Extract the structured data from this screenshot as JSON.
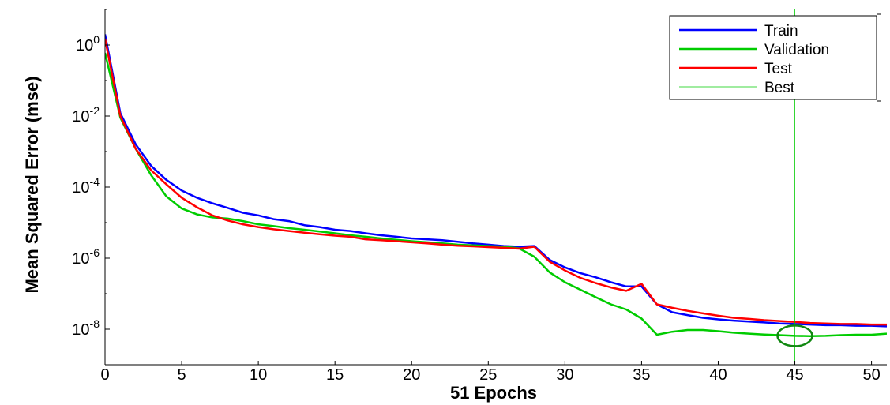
{
  "chart_data": {
    "type": "line",
    "xlabel": "51 Epochs",
    "ylabel": "Mean Squared Error  (mse)",
    "xlim": [
      0,
      51
    ],
    "ylim": [
      1e-09,
      10
    ],
    "yscale": "log",
    "x_ticks": [
      0,
      5,
      10,
      15,
      20,
      25,
      30,
      35,
      40,
      45,
      50
    ],
    "y_ticks": [
      {
        "value": 1,
        "base": "10",
        "exp": "0"
      },
      {
        "value": 0.01,
        "base": "10",
        "exp": "-2"
      },
      {
        "value": 0.0001,
        "base": "10",
        "exp": "-4"
      },
      {
        "value": 1e-06,
        "base": "10",
        "exp": "-6"
      },
      {
        "value": 1e-08,
        "base": "10",
        "exp": "-8"
      }
    ],
    "grid": false,
    "legend_position": "top-right",
    "series": [
      {
        "name": "Train",
        "color": "#0000ff",
        "x": [
          0,
          1,
          2,
          3,
          4,
          5,
          6,
          7,
          8,
          9,
          10,
          11,
          12,
          13,
          14,
          15,
          16,
          17,
          18,
          19,
          20,
          21,
          22,
          23,
          24,
          25,
          26,
          27,
          28,
          29,
          30,
          31,
          32,
          33,
          34,
          35,
          36,
          37,
          38,
          39,
          40,
          41,
          42,
          43,
          44,
          45,
          46,
          47,
          48,
          49,
          50,
          51
        ],
        "y": [
          2.0,
          0.012,
          0.0016,
          0.0004,
          0.00016,
          8e-05,
          5e-05,
          3.5e-05,
          2.6e-05,
          1.9e-05,
          1.6e-05,
          1.25e-05,
          1.1e-05,
          8.5e-06,
          7.5e-06,
          6.3e-06,
          5.8e-06,
          5e-06,
          4.4e-06,
          4e-06,
          3.6e-06,
          3.4e-06,
          3.2e-06,
          2.9e-06,
          2.6e-06,
          2.4e-06,
          2.2e-06,
          2.1e-06,
          2.2e-06,
          9e-07,
          5.5e-07,
          3.8e-07,
          2.9e-07,
          2.1e-07,
          1.6e-07,
          1.6e-07,
          5e-08,
          3e-08,
          2.5e-08,
          2.1e-08,
          1.9e-08,
          1.75e-08,
          1.65e-08,
          1.55e-08,
          1.45e-08,
          1.4e-08,
          1.35e-08,
          1.3e-08,
          1.3e-08,
          1.25e-08,
          1.25e-08,
          1.2e-08
        ]
      },
      {
        "name": "Validation",
        "color": "#00cc00",
        "x": [
          0,
          1,
          2,
          3,
          4,
          5,
          6,
          7,
          8,
          9,
          10,
          11,
          12,
          13,
          14,
          15,
          16,
          17,
          18,
          19,
          20,
          21,
          22,
          23,
          24,
          25,
          26,
          27,
          28,
          29,
          30,
          31,
          32,
          33,
          34,
          35,
          36,
          37,
          38,
          39,
          40,
          41,
          42,
          43,
          44,
          45,
          46,
          47,
          48,
          49,
          50,
          51
        ],
        "y": [
          0.6,
          0.009,
          0.0012,
          0.00022,
          5.5e-05,
          2.5e-05,
          1.7e-05,
          1.4e-05,
          1.3e-05,
          1.1e-05,
          9e-06,
          8e-06,
          7e-06,
          6.3e-06,
          5.6e-06,
          5e-06,
          4.4e-06,
          4e-06,
          3.6e-06,
          3.3e-06,
          3e-06,
          2.8e-06,
          2.6e-06,
          2.4e-06,
          2.3e-06,
          2.2e-06,
          2.1e-06,
          1.9e-06,
          1.1e-06,
          4e-07,
          2.1e-07,
          1.3e-07,
          8e-08,
          5e-08,
          3.6e-08,
          2e-08,
          7e-09,
          8.5e-09,
          9.5e-09,
          9.5e-09,
          8.8e-09,
          8e-09,
          7.5e-09,
          7.1e-09,
          6.8e-09,
          6.5e-09,
          6.4e-09,
          6.5e-09,
          6.8e-09,
          7e-09,
          7e-09,
          7.5e-09
        ]
      },
      {
        "name": "Test",
        "color": "#ff0000",
        "x": [
          0,
          1,
          2,
          3,
          4,
          5,
          6,
          7,
          8,
          9,
          10,
          11,
          12,
          13,
          14,
          15,
          16,
          17,
          18,
          19,
          20,
          21,
          22,
          23,
          24,
          25,
          26,
          27,
          28,
          29,
          30,
          31,
          32,
          33,
          34,
          35,
          36,
          37,
          38,
          39,
          40,
          41,
          42,
          43,
          44,
          45,
          46,
          47,
          48,
          49,
          50,
          51
        ],
        "y": [
          1.5,
          0.01,
          0.0012,
          0.0003,
          0.00012,
          5e-05,
          2.7e-05,
          1.6e-05,
          1.15e-05,
          9e-06,
          7.5e-06,
          6.5e-06,
          5.8e-06,
          5.2e-06,
          4.7e-06,
          4.3e-06,
          4e-06,
          3.4e-06,
          3.2e-06,
          3e-06,
          2.8e-06,
          2.6e-06,
          2.4e-06,
          2.25e-06,
          2.15e-06,
          2.05e-06,
          1.95e-06,
          1.85e-06,
          2.1e-06,
          8e-07,
          4.5e-07,
          2.8e-07,
          2e-07,
          1.5e-07,
          1.2e-07,
          1.9e-07,
          5e-08,
          4e-08,
          3.3e-08,
          2.8e-08,
          2.4e-08,
          2.1e-08,
          1.95e-08,
          1.8e-08,
          1.7e-08,
          1.6e-08,
          1.5e-08,
          1.45e-08,
          1.4e-08,
          1.4e-08,
          1.35e-08,
          1.35e-08
        ]
      },
      {
        "name": "Best",
        "color": "#00cc00",
        "style": "thin",
        "best_epoch": 45,
        "best_value": 6.5e-09
      }
    ]
  }
}
